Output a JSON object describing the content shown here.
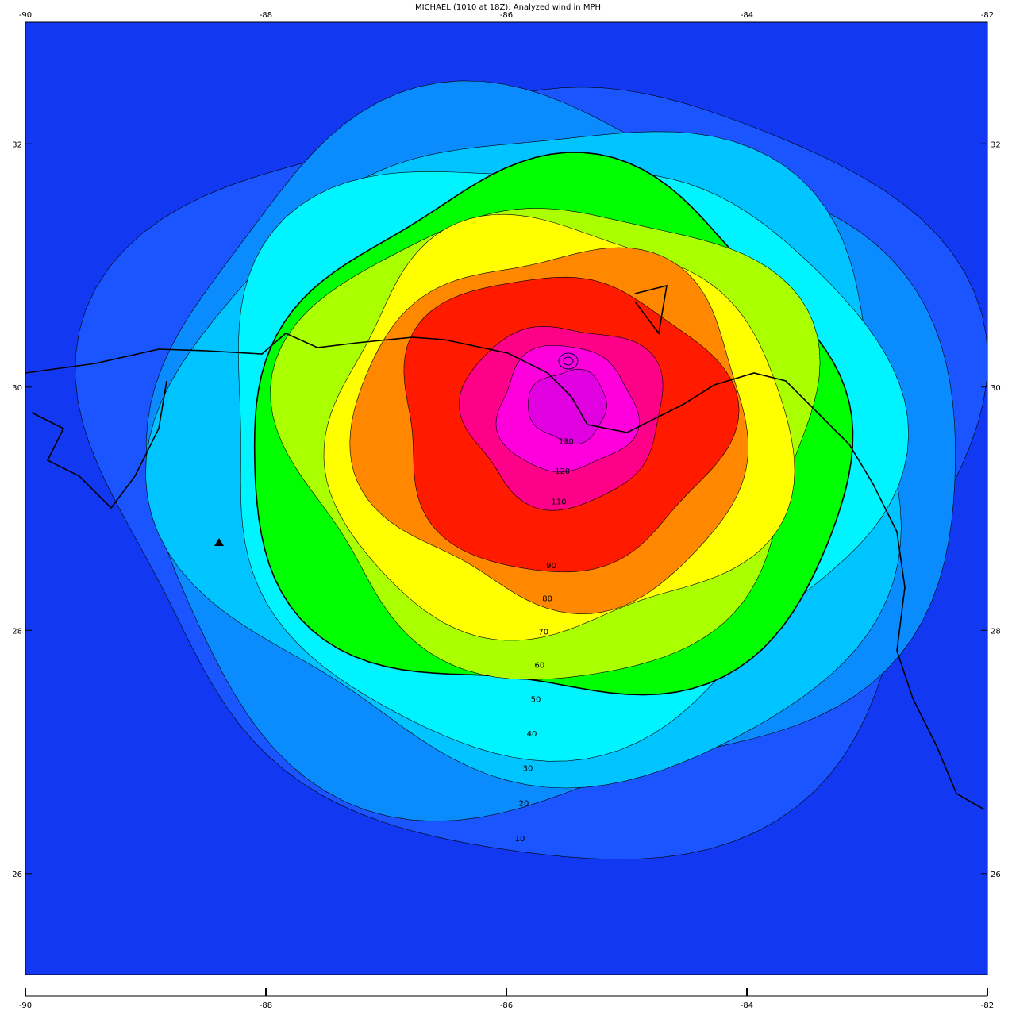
{
  "map": {
    "title": "MICHAEL (1010 at 18Z): Analyzed wind in MPH",
    "xlim": [
      -90,
      -82
    ],
    "ylim": [
      25.17,
      33.0
    ],
    "xticks": [
      -90,
      -88,
      -86,
      -84,
      -82
    ],
    "yticks": [
      26,
      28,
      30,
      32
    ],
    "background_color": "#1238f2",
    "levels": [
      {
        "value": 10,
        "color": "#1a55ff"
      },
      {
        "value": 20,
        "color": "#0a8cff"
      },
      {
        "value": 30,
        "color": "#00c4ff"
      },
      {
        "value": 40,
        "color": "#00f4ff"
      },
      {
        "value": 50,
        "color": "#00ff00"
      },
      {
        "value": 60,
        "color": "#aaff00"
      },
      {
        "value": 70,
        "color": "#ffff00"
      },
      {
        "value": 80,
        "color": "#ff8800"
      },
      {
        "value": 90,
        "color": "#ff1a00"
      },
      {
        "value": 110,
        "color": "#ff0088"
      },
      {
        "value": 120,
        "color": "#ff00dd"
      },
      {
        "value": 130,
        "color": "#e000e0"
      }
    ]
  }
}
